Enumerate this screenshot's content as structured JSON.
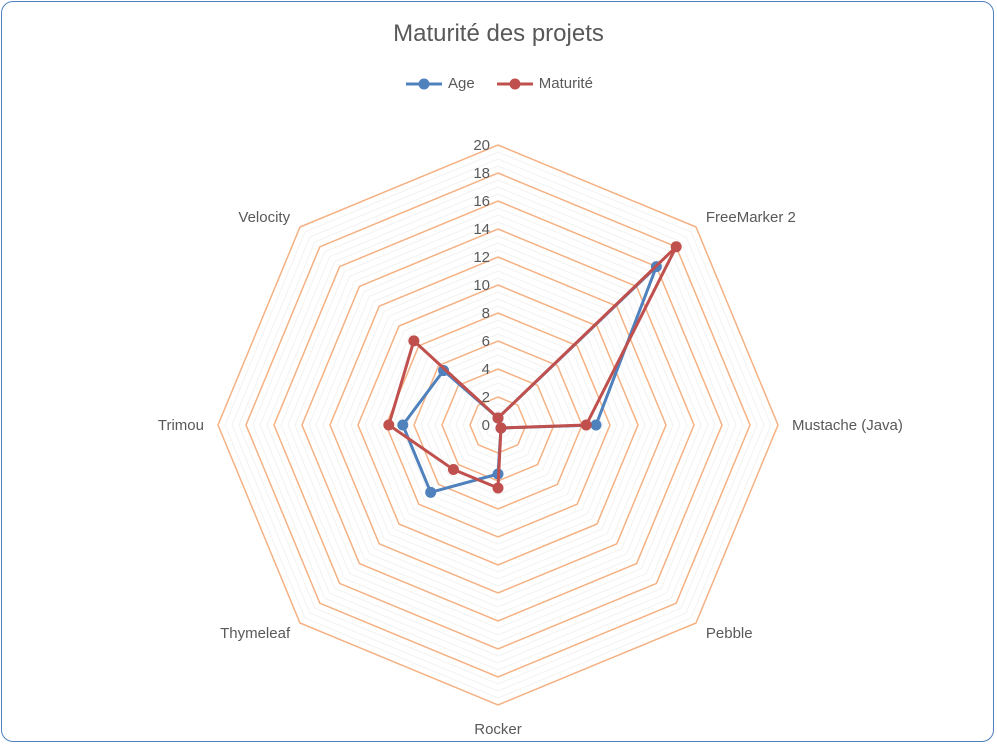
{
  "chart_data": {
    "type": "radar",
    "title": "Maturité des projets",
    "categories": [
      "Mustache (Java)",
      "Pebble",
      "Rocker",
      "Thymeleaf",
      "Trimou",
      "Velocity",
      "FreeMarker 2"
    ],
    "radial_ticks": [
      "0",
      "2",
      "4",
      "6",
      "8",
      "10",
      "12",
      "14",
      "16",
      "18",
      "20"
    ],
    "rlim": [
      0,
      20
    ],
    "series": [
      {
        "name": "Age",
        "color": "#4f81bd",
        "values": [
          7,
          0.3,
          3.5,
          6.8,
          6.8,
          5.5,
          16
        ]
      },
      {
        "name": "Maturité",
        "color": "#c0504d",
        "values": [
          6.3,
          0.3,
          4.5,
          4.5,
          7.8,
          8.5,
          18
        ]
      }
    ],
    "grid_color": "#f4b183"
  }
}
